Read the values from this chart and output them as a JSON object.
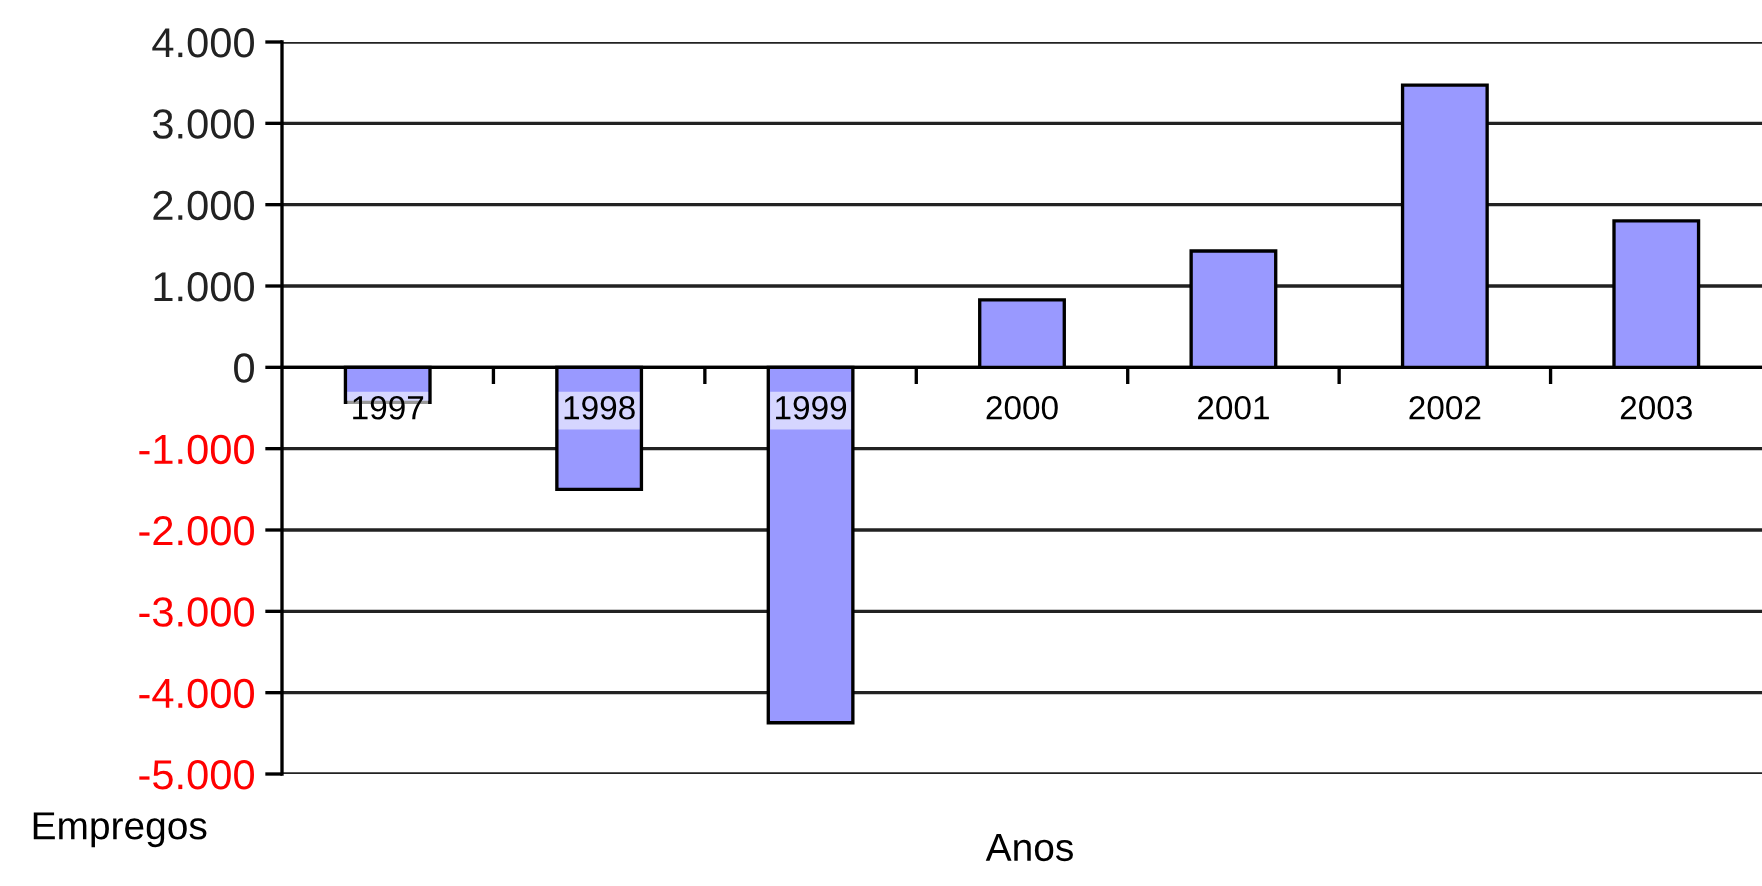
{
  "chart_data": {
    "type": "bar",
    "xlabel": "Anos",
    "ylabel": "Empregos",
    "categories": [
      "1997",
      "1998",
      "1999",
      "2000",
      "2001",
      "2002",
      "2003"
    ],
    "values": [
      -430,
      -1500,
      -4370,
      830,
      1430,
      3470,
      1800
    ],
    "color": "#9999ff",
    "ylim": [
      -5000,
      4000
    ],
    "yticks": [
      {
        "value": -5000,
        "label": "-5.000"
      },
      {
        "value": -4000,
        "label": "-4.000"
      },
      {
        "value": -3000,
        "label": "-3.000"
      },
      {
        "value": -2000,
        "label": "-2.000"
      },
      {
        "value": -1000,
        "label": "-1.000"
      },
      {
        "value": 0,
        "label": "0"
      },
      {
        "value": 1000,
        "label": "1.000"
      },
      {
        "value": 2000,
        "label": "2.000"
      },
      {
        "value": 3000,
        "label": "3.000"
      },
      {
        "value": 4000,
        "label": "4.000"
      }
    ],
    "grid": "y",
    "legend": false
  }
}
